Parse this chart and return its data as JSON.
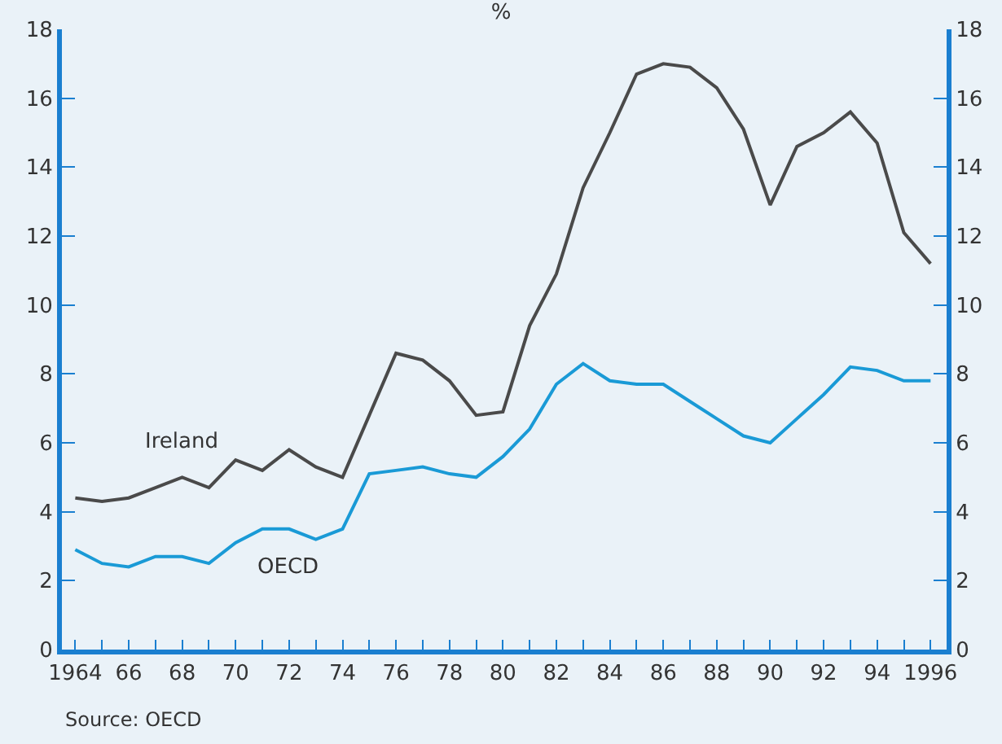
{
  "chart_data": {
    "type": "line",
    "title": "%",
    "annotations": [
      "Source: OECD"
    ],
    "x": [
      1964,
      1965,
      1966,
      1967,
      1968,
      1969,
      1970,
      1971,
      1972,
      1973,
      1974,
      1975,
      1976,
      1977,
      1978,
      1979,
      1980,
      1981,
      1982,
      1983,
      1984,
      1985,
      1986,
      1987,
      1988,
      1989,
      1990,
      1991,
      1992,
      1993,
      1994,
      1995,
      1996
    ],
    "series": [
      {
        "name": "Ireland",
        "color": "#4a4a4a",
        "values": [
          4.4,
          4.3,
          4.4,
          4.7,
          5.0,
          4.7,
          5.5,
          5.2,
          5.8,
          5.3,
          5.0,
          6.8,
          8.6,
          8.4,
          7.8,
          6.8,
          6.9,
          9.4,
          10.9,
          13.4,
          15.0,
          16.7,
          17.0,
          16.9,
          16.3,
          15.1,
          12.9,
          14.6,
          15.0,
          15.6,
          14.7,
          12.1,
          11.2
        ]
      },
      {
        "name": "OECD",
        "color": "#1a9ad6",
        "values": [
          2.9,
          2.5,
          2.4,
          2.7,
          2.7,
          2.5,
          3.1,
          3.5,
          3.5,
          3.2,
          3.5,
          5.1,
          5.2,
          5.3,
          5.1,
          5.0,
          5.6,
          6.4,
          7.7,
          8.3,
          7.8,
          7.7,
          7.7,
          7.2,
          6.7,
          6.2,
          6.0,
          6.7,
          7.4,
          8.2,
          8.1,
          7.8,
          7.8
        ]
      }
    ],
    "xlim": [
      1963.5,
      1996.6
    ],
    "xticks": [
      {
        "value": 1964,
        "label": "1964"
      },
      {
        "value": 1965,
        "label": null
      },
      {
        "value": 1966,
        "label": "66"
      },
      {
        "value": 1967,
        "label": null
      },
      {
        "value": 1968,
        "label": "68"
      },
      {
        "value": 1969,
        "label": null
      },
      {
        "value": 1970,
        "label": "70"
      },
      {
        "value": 1971,
        "label": null
      },
      {
        "value": 1972,
        "label": "72"
      },
      {
        "value": 1973,
        "label": null
      },
      {
        "value": 1974,
        "label": "74"
      },
      {
        "value": 1975,
        "label": null
      },
      {
        "value": 1976,
        "label": "76"
      },
      {
        "value": 1977,
        "label": null
      },
      {
        "value": 1978,
        "label": "78"
      },
      {
        "value": 1979,
        "label": null
      },
      {
        "value": 1980,
        "label": "80"
      },
      {
        "value": 1981,
        "label": null
      },
      {
        "value": 1982,
        "label": "82"
      },
      {
        "value": 1983,
        "label": null
      },
      {
        "value": 1984,
        "label": "84"
      },
      {
        "value": 1985,
        "label": null
      },
      {
        "value": 1986,
        "label": "86"
      },
      {
        "value": 1987,
        "label": null
      },
      {
        "value": 1988,
        "label": "88"
      },
      {
        "value": 1989,
        "label": null
      },
      {
        "value": 1990,
        "label": "90"
      },
      {
        "value": 1991,
        "label": null
      },
      {
        "value": 1992,
        "label": "92"
      },
      {
        "value": 1993,
        "label": null
      },
      {
        "value": 1994,
        "label": "94"
      },
      {
        "value": 1995,
        "label": null
      },
      {
        "value": 1996,
        "label": "1996"
      }
    ],
    "ylim": [
      0,
      18
    ],
    "yticks": [
      0,
      2,
      4,
      6,
      8,
      10,
      12,
      14,
      16,
      18
    ],
    "y2lim": [
      0,
      18
    ],
    "y2ticks": [
      0,
      2,
      4,
      6,
      8,
      10,
      12,
      14,
      16,
      18
    ],
    "grid": false,
    "legend": false,
    "marker": "none",
    "line_style": "solid"
  }
}
